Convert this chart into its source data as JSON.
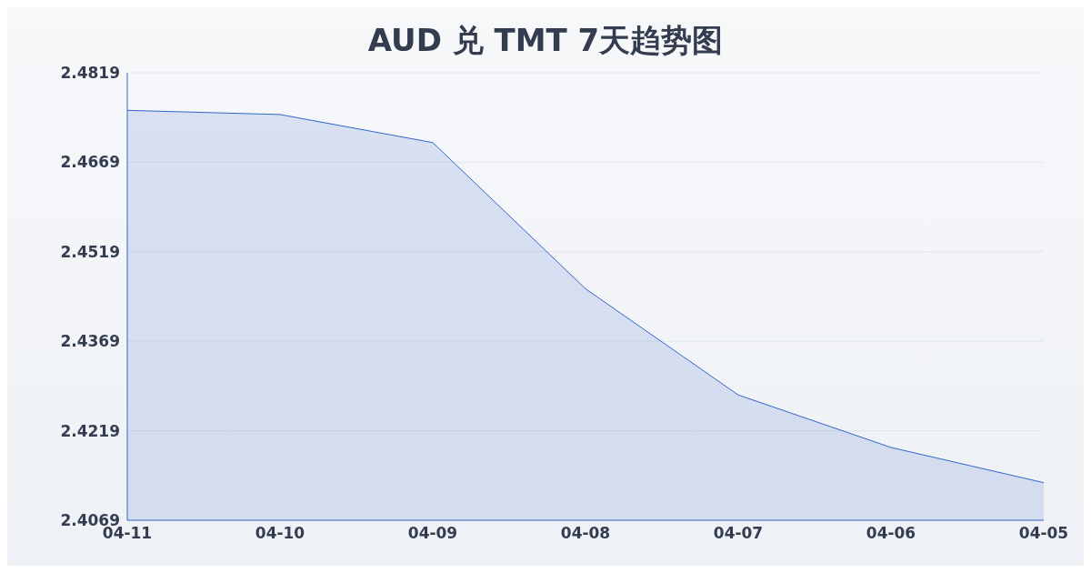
{
  "chart_data": {
    "type": "area",
    "title": "AUD 兑 TMT 7天趋势图",
    "categories": [
      "04-11",
      "04-10",
      "04-09",
      "04-08",
      "04-07",
      "04-06",
      "04-05"
    ],
    "series": [
      {
        "color": "#3366cc",
        "values": [
          2.4756,
          2.4749,
          2.4702,
          2.4457,
          2.4279,
          2.4191,
          2.4132
        ]
      }
    ],
    "ylim": [
      2.4069,
      2.4819
    ],
    "yticks": [
      2.4069,
      2.4219,
      2.4369,
      2.4519,
      2.4669,
      2.4819
    ],
    "grid": "y"
  }
}
